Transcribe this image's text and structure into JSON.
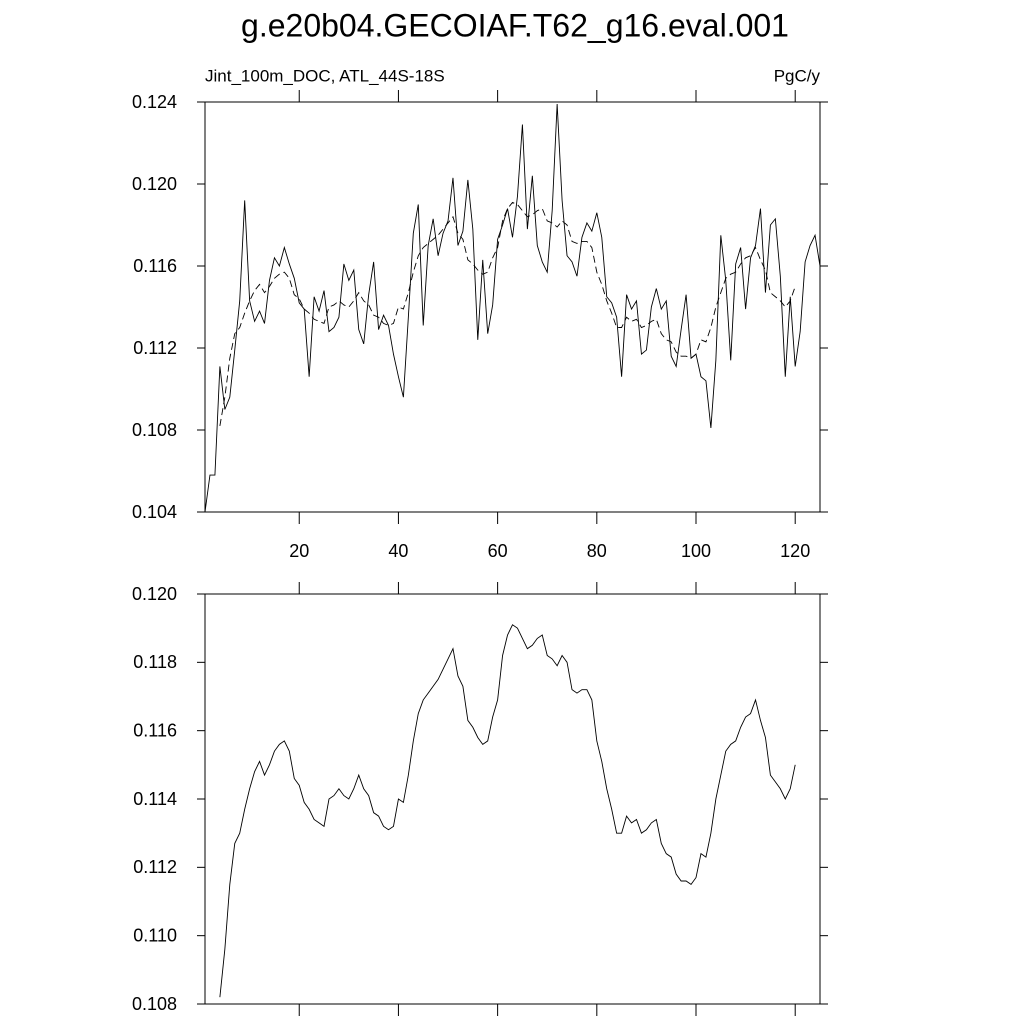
{
  "chart_data": [
    {
      "type": "line",
      "title": "g.e20b04.GECOIAF.T62_g16.eval.001",
      "left_subtitle": "Jint_100m_DOC, ATL_44S-18S",
      "right_subtitle": "PgC/y",
      "xlim": [
        1,
        125
      ],
      "xticks": [
        20,
        40,
        60,
        80,
        100,
        120
      ],
      "ylim": [
        0.104,
        0.124
      ],
      "yticks": [
        0.104,
        0.108,
        0.112,
        0.116,
        {
          "value": 0.12,
          "label": "0.120"
        },
        0.124
      ],
      "series": [
        {
          "color": "#000000",
          "dashed": false,
          "x": [
            1,
            2,
            3,
            4,
            5,
            6,
            7,
            8,
            9,
            10,
            11,
            12,
            13,
            14,
            15,
            16,
            17,
            18,
            19,
            20,
            21,
            22,
            23,
            24,
            25,
            26,
            27,
            28,
            29,
            30,
            31,
            32,
            33,
            34,
            35,
            36,
            37,
            38,
            39,
            40,
            41,
            42,
            43,
            44,
            45,
            46,
            47,
            48,
            49,
            50,
            51,
            52,
            53,
            54,
            55,
            56,
            57,
            58,
            59,
            60,
            61,
            62,
            63,
            64,
            65,
            66,
            67,
            68,
            69,
            70,
            71,
            72,
            73,
            74,
            75,
            76,
            77,
            78,
            79,
            80,
            81,
            82,
            83,
            84,
            85,
            86,
            87,
            88,
            89,
            90,
            91,
            92,
            93,
            94,
            95,
            96,
            97,
            98,
            99,
            100,
            101,
            102,
            103,
            104,
            105,
            106,
            107,
            108,
            109,
            110,
            111,
            112,
            113,
            114,
            115,
            116,
            117,
            118,
            119,
            120,
            121,
            122,
            123,
            124,
            125
          ],
          "values": [
            0.104,
            0.1058,
            0.1058,
            0.1111,
            0.109,
            0.1096,
            0.1119,
            0.1143,
            0.1192,
            0.1143,
            0.1133,
            0.1138,
            0.1132,
            0.1153,
            0.1164,
            0.116,
            0.1169,
            0.1161,
            0.1154,
            0.1142,
            0.1139,
            0.1106,
            0.1145,
            0.1138,
            0.1148,
            0.1128,
            0.113,
            0.1135,
            0.1161,
            0.1153,
            0.1158,
            0.1129,
            0.1122,
            0.1146,
            0.1162,
            0.1129,
            0.1136,
            0.1131,
            0.1117,
            0.1106,
            0.1096,
            0.1135,
            0.1176,
            0.119,
            0.1131,
            0.117,
            0.1183,
            0.1165,
            0.1176,
            0.1182,
            0.1203,
            0.117,
            0.1177,
            0.1202,
            0.1178,
            0.1124,
            0.1163,
            0.1127,
            0.1141,
            0.1173,
            0.118,
            0.1188,
            0.1174,
            0.1194,
            0.1229,
            0.1178,
            0.1204,
            0.117,
            0.1162,
            0.1157,
            0.1187,
            0.1239,
            0.1192,
            0.1165,
            0.1162,
            0.1155,
            0.1174,
            0.1181,
            0.1177,
            0.1186,
            0.1174,
            0.1145,
            0.1142,
            0.1135,
            0.1106,
            0.1146,
            0.1139,
            0.1143,
            0.1117,
            0.1119,
            0.114,
            0.1149,
            0.1139,
            0.1143,
            0.1116,
            0.1111,
            0.1129,
            0.1146,
            0.1115,
            0.1117,
            0.1106,
            0.1104,
            0.1081,
            0.1114,
            0.1175,
            0.1153,
            0.1114,
            0.1161,
            0.1169,
            0.1139,
            0.1164,
            0.117,
            0.1188,
            0.1147,
            0.118,
            0.1183,
            0.1155,
            0.1106,
            0.1145,
            0.1111,
            0.1128,
            0.1162,
            0.117,
            0.1175,
            0.116
          ]
        },
        {
          "color": "#000000",
          "dashed": true,
          "x": [
            4,
            5,
            6,
            7,
            8,
            9,
            10,
            11,
            12,
            13,
            14,
            15,
            16,
            17,
            18,
            19,
            20,
            21,
            22,
            23,
            24,
            25,
            26,
            27,
            28,
            29,
            30,
            31,
            32,
            33,
            34,
            35,
            36,
            37,
            38,
            39,
            40,
            41,
            42,
            43,
            44,
            45,
            46,
            47,
            48,
            49,
            50,
            51,
            52,
            53,
            54,
            55,
            56,
            57,
            58,
            59,
            60,
            61,
            62,
            63,
            64,
            65,
            66,
            67,
            68,
            69,
            70,
            71,
            72,
            73,
            74,
            75,
            76,
            77,
            78,
            79,
            80,
            81,
            82,
            83,
            84,
            85,
            86,
            87,
            88,
            89,
            90,
            91,
            92,
            93,
            94,
            95,
            96,
            97,
            98,
            99,
            100,
            101,
            102,
            103,
            104,
            105,
            106,
            107,
            108,
            109,
            110,
            111,
            112,
            113,
            114,
            115,
            116,
            117,
            118,
            119,
            120
          ],
          "values": [
            0.1082,
            0.1096,
            0.1115,
            0.1127,
            0.113,
            0.1137,
            0.1143,
            0.1148,
            0.1151,
            0.1147,
            0.115,
            0.1154,
            0.1156,
            0.1157,
            0.1154,
            0.1146,
            0.1144,
            0.1139,
            0.1137,
            0.1134,
            0.1133,
            0.1132,
            0.114,
            0.1141,
            0.1143,
            0.1141,
            0.114,
            0.1143,
            0.1147,
            0.1143,
            0.1141,
            0.1136,
            0.1135,
            0.1132,
            0.1131,
            0.1132,
            0.114,
            0.1139,
            0.1147,
            0.1157,
            0.1165,
            0.1169,
            0.1171,
            0.1173,
            0.1175,
            0.1178,
            0.1181,
            0.1184,
            0.1176,
            0.1173,
            0.1163,
            0.1161,
            0.1158,
            0.1156,
            0.1157,
            0.1164,
            0.1169,
            0.1182,
            0.1188,
            0.1191,
            0.119,
            0.1187,
            0.1184,
            0.1185,
            0.1187,
            0.1188,
            0.1182,
            0.1181,
            0.1179,
            0.1182,
            0.118,
            0.1172,
            0.1171,
            0.1172,
            0.1172,
            0.1169,
            0.1157,
            0.1151,
            0.1143,
            0.1137,
            0.113,
            0.113,
            0.1135,
            0.1133,
            0.1134,
            0.113,
            0.1131,
            0.1133,
            0.1134,
            0.1127,
            0.1124,
            0.1123,
            0.1118,
            0.1116,
            0.1116,
            0.1115,
            0.1117,
            0.1124,
            0.1123,
            0.113,
            0.114,
            0.1147,
            0.1154,
            0.1156,
            0.1157,
            0.1161,
            0.1164,
            0.1165,
            0.1169,
            0.1163,
            0.1158,
            0.1147,
            0.1145,
            0.1143,
            0.114,
            0.1143,
            0.115
          ]
        }
      ]
    },
    {
      "type": "line",
      "xlim": [
        1,
        125
      ],
      "ylim": [
        0.108,
        0.12
      ],
      "yticks": [
        0.108,
        {
          "value": 0.11,
          "label": "0.110"
        },
        0.112,
        0.114,
        0.116,
        0.118,
        {
          "value": 0.12,
          "label": "0.120"
        }
      ],
      "series": [
        {
          "color": "#000000",
          "dashed": false,
          "x": [
            4,
            5,
            6,
            7,
            8,
            9,
            10,
            11,
            12,
            13,
            14,
            15,
            16,
            17,
            18,
            19,
            20,
            21,
            22,
            23,
            24,
            25,
            26,
            27,
            28,
            29,
            30,
            31,
            32,
            33,
            34,
            35,
            36,
            37,
            38,
            39,
            40,
            41,
            42,
            43,
            44,
            45,
            46,
            47,
            48,
            49,
            50,
            51,
            52,
            53,
            54,
            55,
            56,
            57,
            58,
            59,
            60,
            61,
            62,
            63,
            64,
            65,
            66,
            67,
            68,
            69,
            70,
            71,
            72,
            73,
            74,
            75,
            76,
            77,
            78,
            79,
            80,
            81,
            82,
            83,
            84,
            85,
            86,
            87,
            88,
            89,
            90,
            91,
            92,
            93,
            94,
            95,
            96,
            97,
            98,
            99,
            100,
            101,
            102,
            103,
            104,
            105,
            106,
            107,
            108,
            109,
            110,
            111,
            112,
            113,
            114,
            115,
            116,
            117,
            118,
            119,
            120
          ],
          "values": [
            0.1082,
            0.1096,
            0.1115,
            0.1127,
            0.113,
            0.1137,
            0.1143,
            0.1148,
            0.1151,
            0.1147,
            0.115,
            0.1154,
            0.1156,
            0.1157,
            0.1154,
            0.1146,
            0.1144,
            0.1139,
            0.1137,
            0.1134,
            0.1133,
            0.1132,
            0.114,
            0.1141,
            0.1143,
            0.1141,
            0.114,
            0.1143,
            0.1147,
            0.1143,
            0.1141,
            0.1136,
            0.1135,
            0.1132,
            0.1131,
            0.1132,
            0.114,
            0.1139,
            0.1147,
            0.1157,
            0.1165,
            0.1169,
            0.1171,
            0.1173,
            0.1175,
            0.1178,
            0.1181,
            0.1184,
            0.1176,
            0.1173,
            0.1163,
            0.1161,
            0.1158,
            0.1156,
            0.1157,
            0.1164,
            0.1169,
            0.1182,
            0.1188,
            0.1191,
            0.119,
            0.1187,
            0.1184,
            0.1185,
            0.1187,
            0.1188,
            0.1182,
            0.1181,
            0.1179,
            0.1182,
            0.118,
            0.1172,
            0.1171,
            0.1172,
            0.1172,
            0.1169,
            0.1157,
            0.1151,
            0.1143,
            0.1137,
            0.113,
            0.113,
            0.1135,
            0.1133,
            0.1134,
            0.113,
            0.1131,
            0.1133,
            0.1134,
            0.1127,
            0.1124,
            0.1123,
            0.1118,
            0.1116,
            0.1116,
            0.1115,
            0.1117,
            0.1124,
            0.1123,
            0.113,
            0.114,
            0.1147,
            0.1154,
            0.1156,
            0.1157,
            0.1161,
            0.1164,
            0.1165,
            0.1169,
            0.1163,
            0.1158,
            0.1147,
            0.1145,
            0.1143,
            0.114,
            0.1143,
            0.115
          ]
        }
      ]
    }
  ]
}
